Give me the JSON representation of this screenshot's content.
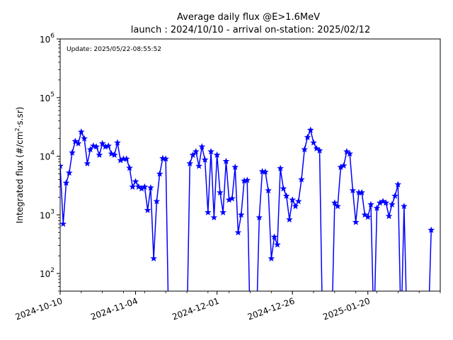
{
  "chart_data": {
    "type": "line",
    "title": "Average daily flux @E>1.6MeV",
    "subtitle": "launch : 2024/10/10 - arrival on-station: 2025/02/12",
    "annotation": "Update: 2025/05/22-08:55:52",
    "xlabel": "",
    "ylabel": "Integrated flux (#/cm²·s.sr)",
    "ylabel_parts": {
      "before": "Integrated flux (#/cm",
      "superscript": "2",
      "after": "·s.sr)"
    },
    "yscale": "log",
    "xlim": [
      "2024-10-10",
      "2025-02-13"
    ],
    "ylim": [
      50,
      1000000
    ],
    "x_ticks": [
      "2024-10-10",
      "2024-11-04",
      "2024-12-01",
      "2024-12-26",
      "2025-01-20"
    ],
    "y_ticks": [
      {
        "value": 100,
        "base": "10",
        "exp": "2"
      },
      {
        "value": 1000,
        "base": "10",
        "exp": "3"
      },
      {
        "value": 10000,
        "base": "10",
        "exp": "4"
      },
      {
        "value": 100000,
        "base": "10",
        "exp": "5"
      },
      {
        "value": 1000000,
        "base": "10",
        "exp": "6"
      }
    ],
    "color": "#0000ff",
    "marker": "star",
    "grid": false,
    "series": [
      {
        "name": "",
        "points": [
          [
            "2024-10-10",
            6800
          ],
          [
            "2024-10-11",
            700
          ],
          [
            "2024-10-12",
            3500
          ],
          [
            "2024-10-13",
            5200
          ],
          [
            "2024-10-14",
            11500
          ],
          [
            "2024-10-15",
            18000
          ],
          [
            "2024-10-16",
            16500
          ],
          [
            "2024-10-17",
            26000
          ],
          [
            "2024-10-18",
            20000
          ],
          [
            "2024-10-19",
            7500
          ],
          [
            "2024-10-20",
            13000
          ],
          [
            "2024-10-21",
            15000
          ],
          [
            "2024-10-22",
            14500
          ],
          [
            "2024-10-23",
            10500
          ],
          [
            "2024-10-24",
            16500
          ],
          [
            "2024-10-25",
            14500
          ],
          [
            "2024-10-26",
            15000
          ],
          [
            "2024-10-27",
            11000
          ],
          [
            "2024-10-28",
            10500
          ],
          [
            "2024-10-29",
            17000
          ],
          [
            "2024-10-30",
            8500
          ],
          [
            "2024-10-31",
            9000
          ],
          [
            "2024-11-01",
            9000
          ],
          [
            "2024-11-02",
            6300
          ],
          [
            "2024-11-03",
            3000
          ],
          [
            "2024-11-04",
            3700
          ],
          [
            "2024-11-05",
            3000
          ],
          [
            "2024-11-06",
            2800
          ],
          [
            "2024-11-07",
            3000
          ],
          [
            "2024-11-08",
            1200
          ],
          [
            "2024-11-09",
            2900
          ],
          [
            "2024-11-10",
            180
          ],
          [
            "2024-11-11",
            1700
          ],
          [
            "2024-11-12",
            5000
          ],
          [
            "2024-11-13",
            9200
          ],
          [
            "2024-11-14",
            9000
          ],
          [
            "2024-11-15",
            10
          ],
          [
            "2024-11-16",
            null
          ],
          [
            "2024-11-17",
            null
          ],
          [
            "2024-11-18",
            null
          ],
          [
            "2024-11-19",
            null
          ],
          [
            "2024-11-20",
            null
          ],
          [
            "2024-11-21",
            10
          ],
          [
            "2024-11-22",
            7500
          ],
          [
            "2024-11-23",
            10500
          ],
          [
            "2024-11-24",
            12000
          ],
          [
            "2024-11-25",
            6800
          ],
          [
            "2024-11-26",
            14500
          ],
          [
            "2024-11-27",
            8700
          ],
          [
            "2024-11-28",
            1100
          ],
          [
            "2024-11-29",
            12000
          ],
          [
            "2024-11-30",
            900
          ],
          [
            "2024-12-01",
            10500
          ],
          [
            "2024-12-02",
            2400
          ],
          [
            "2024-12-03",
            1100
          ],
          [
            "2024-12-04",
            8200
          ],
          [
            "2024-12-05",
            1800
          ],
          [
            "2024-12-06",
            1900
          ],
          [
            "2024-12-07",
            6500
          ],
          [
            "2024-12-08",
            500
          ],
          [
            "2024-12-09",
            1000
          ],
          [
            "2024-12-10",
            3800
          ],
          [
            "2024-12-11",
            3900
          ],
          [
            "2024-12-12",
            10
          ],
          [
            "2024-12-13",
            null
          ],
          [
            "2024-12-14",
            10
          ],
          [
            "2024-12-15",
            900
          ],
          [
            "2024-12-16",
            5500
          ],
          [
            "2024-12-17",
            5400
          ],
          [
            "2024-12-18",
            2600
          ],
          [
            "2024-12-19",
            180
          ],
          [
            "2024-12-20",
            420
          ],
          [
            "2024-12-21",
            310
          ],
          [
            "2024-12-22",
            6200
          ],
          [
            "2024-12-23",
            2800
          ],
          [
            "2024-12-24",
            2100
          ],
          [
            "2024-12-25",
            830
          ],
          [
            "2024-12-26",
            1800
          ],
          [
            "2024-12-27",
            1400
          ],
          [
            "2024-12-28",
            1700
          ],
          [
            "2024-12-29",
            4000
          ],
          [
            "2024-12-30",
            13000
          ],
          [
            "2024-12-31",
            21000
          ],
          [
            "2025-01-01",
            28000
          ],
          [
            "2025-01-02",
            17000
          ],
          [
            "2025-01-03",
            13500
          ],
          [
            "2025-01-04",
            12500
          ],
          [
            "2025-01-05",
            10
          ],
          [
            "2025-01-06",
            null
          ],
          [
            "2025-01-07",
            null
          ],
          [
            "2025-01-08",
            10
          ],
          [
            "2025-01-09",
            1600
          ],
          [
            "2025-01-10",
            1400
          ],
          [
            "2025-01-11",
            6500
          ],
          [
            "2025-01-12",
            6900
          ],
          [
            "2025-01-13",
            12000
          ],
          [
            "2025-01-14",
            11000
          ],
          [
            "2025-01-15",
            2600
          ],
          [
            "2025-01-16",
            750
          ],
          [
            "2025-01-17",
            2400
          ],
          [
            "2025-01-18",
            2400
          ],
          [
            "2025-01-19",
            1000
          ],
          [
            "2025-01-20",
            920
          ],
          [
            "2025-01-21",
            1500
          ],
          [
            "2025-01-22",
            10
          ],
          [
            "2025-01-23",
            1300
          ],
          [
            "2025-01-24",
            1600
          ],
          [
            "2025-01-25",
            1700
          ],
          [
            "2025-01-26",
            1600
          ],
          [
            "2025-01-27",
            950
          ],
          [
            "2025-01-28",
            1500
          ],
          [
            "2025-01-29",
            2100
          ],
          [
            "2025-01-30",
            3300
          ],
          [
            "2025-01-31",
            10
          ],
          [
            "2025-02-01",
            1400
          ],
          [
            "2025-02-02",
            10
          ],
          [
            "2025-02-03",
            null
          ],
          [
            "2025-02-04",
            null
          ],
          [
            "2025-02-05",
            null
          ],
          [
            "2025-02-06",
            null
          ],
          [
            "2025-02-07",
            null
          ],
          [
            "2025-02-08",
            null
          ],
          [
            "2025-02-09",
            10
          ],
          [
            "2025-02-10",
            550
          ]
        ]
      }
    ]
  }
}
